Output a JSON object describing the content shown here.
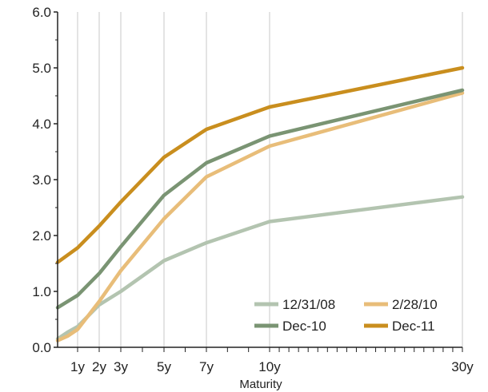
{
  "chart_data": {
    "type": "line",
    "title": "",
    "xlabel": "Maturity",
    "ylabel": "",
    "ylim": [
      0,
      6
    ],
    "yticks": [
      "0.0",
      "1.0",
      "2.0",
      "3.0",
      "4.0",
      "5.0",
      "6.0"
    ],
    "x_major_ticks": [
      {
        "label": "1y",
        "value": 1
      },
      {
        "label": "2y",
        "value": 2
      },
      {
        "label": "3y",
        "value": 3
      },
      {
        "label": "5y",
        "value": 5
      },
      {
        "label": "7y",
        "value": 7
      },
      {
        "label": "10y",
        "value": 10
      },
      {
        "label": "30y",
        "value": 30
      }
    ],
    "grid": "vertical lines at major maturities",
    "legend_position": "bottom-right",
    "series": [
      {
        "name": "12/31/08",
        "color": "#b3c4b0",
        "points": [
          [
            0,
            0.15
          ],
          [
            0.5,
            0.27
          ],
          [
            1,
            0.37
          ],
          [
            2,
            0.76
          ],
          [
            3,
            1.0
          ],
          [
            5,
            1.55
          ],
          [
            7,
            1.87
          ],
          [
            10,
            2.25
          ],
          [
            30,
            2.69
          ]
        ]
      },
      {
        "name": "2/28/10",
        "color": "#e8bd79",
        "points": [
          [
            0,
            0.12
          ],
          [
            0.5,
            0.2
          ],
          [
            1,
            0.32
          ],
          [
            2,
            0.82
          ],
          [
            3,
            1.37
          ],
          [
            5,
            2.3
          ],
          [
            7,
            3.05
          ],
          [
            10,
            3.6
          ],
          [
            30,
            4.55
          ]
        ]
      },
      {
        "name": "Dec-10",
        "color": "#7a9473",
        "points": [
          [
            0,
            0.71
          ],
          [
            1,
            0.93
          ],
          [
            2,
            1.32
          ],
          [
            3,
            1.8
          ],
          [
            5,
            2.72
          ],
          [
            7,
            3.3
          ],
          [
            10,
            3.78
          ],
          [
            30,
            4.6
          ]
        ]
      },
      {
        "name": "Dec-11",
        "color": "#c98e1e",
        "points": [
          [
            0,
            1.52
          ],
          [
            1,
            1.78
          ],
          [
            2,
            2.17
          ],
          [
            3,
            2.6
          ],
          [
            5,
            3.4
          ],
          [
            7,
            3.9
          ],
          [
            10,
            4.3
          ],
          [
            30,
            5.0
          ]
        ]
      }
    ]
  }
}
